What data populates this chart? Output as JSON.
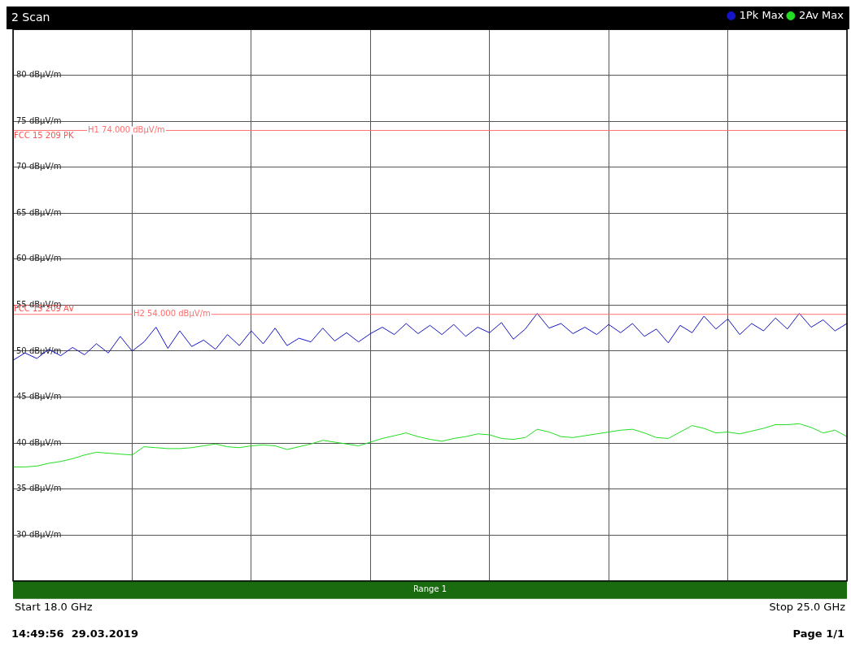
{
  "chart_data": {
    "type": "line",
    "title": "2 Scan",
    "legend": "top right",
    "grid": true,
    "marker": "none",
    "line_style": "solid",
    "categories": [
      null,
      null,
      null,
      null,
      null,
      null,
      null,
      null,
      null,
      null,
      null,
      null,
      null,
      null,
      null,
      null,
      null,
      null,
      null,
      null,
      null,
      null,
      null,
      null,
      null,
      null,
      null,
      null,
      null,
      null,
      null,
      null,
      null,
      null,
      null,
      null,
      null,
      null,
      null,
      null,
      null,
      null,
      null,
      null,
      null,
      null,
      null,
      null,
      null,
      null,
      null,
      null,
      null,
      null,
      null,
      null,
      null,
      null,
      null,
      null,
      null,
      null,
      null,
      null,
      null,
      null,
      null,
      null,
      null,
      null,
      null
    ],
    "ylim": [
      25,
      85
    ],
    "yticks": [
      {
        "value": 25,
        "label": null
      },
      {
        "value": 30,
        "label": "30 dBµV/m"
      },
      {
        "value": 35,
        "label": "35 dBµV/m"
      },
      {
        "value": 40,
        "label": "40 dBµV/m"
      },
      {
        "value": 45,
        "label": "45 dBµV/m"
      },
      {
        "value": 50,
        "label": "50 dBµV/m"
      },
      {
        "value": 55,
        "label": "55 dBµV/m"
      },
      {
        "value": 60,
        "label": "60 dBµV/m"
      },
      {
        "value": 65,
        "label": "65 dBµV/m"
      },
      {
        "value": 70,
        "label": "70 dBµV/m"
      },
      {
        "value": 75,
        "label": "75 dBµV/m"
      },
      {
        "value": 80,
        "label": "80 dBµV/m"
      },
      {
        "value": 85,
        "label": null
      }
    ],
    "ref_lines": [
      {
        "axis": "y",
        "value": 74,
        "label": "H1 74.000 dBµV/m",
        "color": "#ff7070"
      },
      {
        "axis": "y",
        "value": 54,
        "label": "H2 54.000 dBµV/m",
        "color": "#ff7070"
      }
    ],
    "annotations": [
      "Range 1",
      "14:49:56  29.03.2019",
      "Page 1/1",
      "Start 18.0 GHz",
      "Stop 25.0 GHz",
      {
        "text": "FCC 15 209 PK",
        "y": 74
      },
      {
        "text": "FCC 15 209 AV",
        "y": 54
      }
    ],
    "series": [
      {
        "name": "1Pk Max",
        "color": "#1414c8",
        "values": [
          49.0,
          49.8,
          49.2,
          50.2,
          49.5,
          50.4,
          49.6,
          50.8,
          49.8,
          51.6,
          50.0,
          51.0,
          52.6,
          50.3,
          52.2,
          50.5,
          51.2,
          50.2,
          51.8,
          50.6,
          52.2,
          50.8,
          52.5,
          50.6,
          51.4,
          51.0,
          52.5,
          51.1,
          52.0,
          51.0,
          51.9,
          52.6,
          51.8,
          53.0,
          51.9,
          52.8,
          51.8,
          52.9,
          51.6,
          52.6,
          52.0,
          53.1,
          51.3,
          52.4,
          54.1,
          52.5,
          53.0,
          51.9,
          52.6,
          51.8,
          52.9,
          52.0,
          53.0,
          51.6,
          52.4,
          50.9,
          52.8,
          52.0,
          53.8,
          52.4,
          53.5,
          51.8,
          53.0,
          52.2,
          53.6,
          52.4,
          54.1,
          52.6,
          53.4,
          52.2,
          53.0
        ]
      },
      {
        "name": "2Av Max",
        "color": "#22dd22",
        "values": [
          37.4,
          37.4,
          37.5,
          37.8,
          38.0,
          38.3,
          38.7,
          39.0,
          38.9,
          38.8,
          38.7,
          39.6,
          39.5,
          39.4,
          39.4,
          39.5,
          39.7,
          39.9,
          39.6,
          39.5,
          39.7,
          39.8,
          39.7,
          39.3,
          39.6,
          39.9,
          40.3,
          40.1,
          39.9,
          39.7,
          40.1,
          40.5,
          40.8,
          41.1,
          40.7,
          40.4,
          40.2,
          40.5,
          40.7,
          41.0,
          40.9,
          40.5,
          40.4,
          40.6,
          41.5,
          41.2,
          40.7,
          40.6,
          40.8,
          41.0,
          41.2,
          41.4,
          41.5,
          41.1,
          40.6,
          40.5,
          41.2,
          41.9,
          41.6,
          41.1,
          41.2,
          41.0,
          41.3,
          41.6,
          42.0,
          42.0,
          42.1,
          41.7,
          41.1,
          41.4,
          40.7
        ]
      }
    ]
  }
}
